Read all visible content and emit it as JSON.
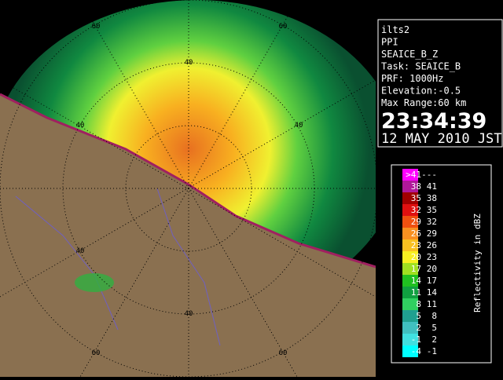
{
  "info": {
    "lines": [
      "ilts2",
      "PPI",
      "SEAICE_B_Z",
      "Task: SEAICE_B",
      "PRF: 1000Hz",
      "Elevation:-0.5",
      "Max Range:60 km"
    ],
    "time": "23:34:39",
    "date": "12 MAY 2010 JST"
  },
  "legend": {
    "title": "Reflectivity in dBZ",
    "rows": [
      {
        "low": ">41",
        "high": "---",
        "color": "#ff00ff"
      },
      {
        "low": "38",
        "high": "41",
        "color": "#b0189a"
      },
      {
        "low": "35",
        "high": "38",
        "color": "#a00000"
      },
      {
        "low": "32",
        "high": "35",
        "color": "#e01010"
      },
      {
        "low": "29",
        "high": "32",
        "color": "#f05010"
      },
      {
        "low": "26",
        "high": "29",
        "color": "#f89020"
      },
      {
        "low": "23",
        "high": "26",
        "color": "#f8c020"
      },
      {
        "low": "20",
        "high": "23",
        "color": "#f8f020"
      },
      {
        "low": "17",
        "high": "20",
        "color": "#a0e020"
      },
      {
        "low": "14",
        "high": "17",
        "color": "#20c020"
      },
      {
        "low": "11",
        "high": "14",
        "color": "#10a040"
      },
      {
        "low": "8",
        "high": "11",
        "color": "#30d060"
      },
      {
        "low": "5",
        "high": "8",
        "color": "#20a090"
      },
      {
        "low": "2",
        "high": "5",
        "color": "#40c0c0"
      },
      {
        "low": "-1",
        "high": "2",
        "color": "#40e0e0"
      },
      {
        "low": "-4",
        "high": "-1",
        "color": "#00ffff"
      }
    ]
  },
  "range_labels": [
    "60",
    "60",
    "40",
    "40",
    "40",
    "40",
    "40",
    "60",
    "60"
  ]
}
